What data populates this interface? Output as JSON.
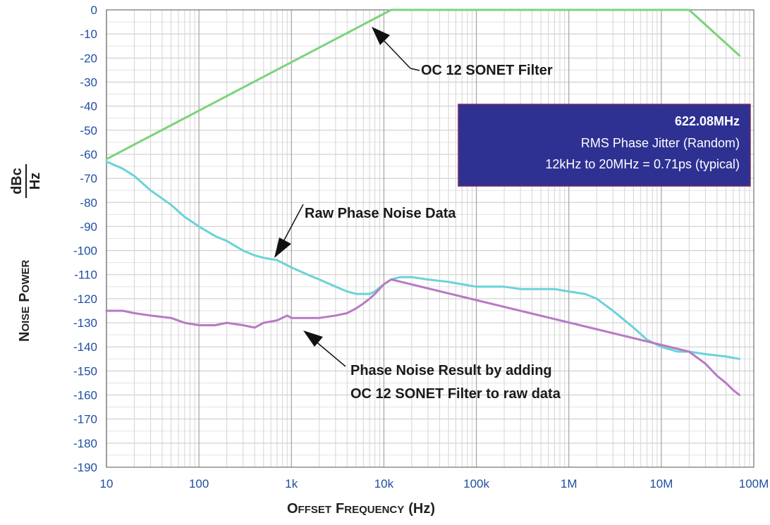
{
  "chart_data": {
    "type": "line",
    "x_scale": "log",
    "xlim": [
      10,
      100000000
    ],
    "ylim": [
      -190,
      0
    ],
    "grid": true,
    "xlabel": {
      "big_o": "O",
      "small_ffset": "FFSET",
      "big_f": "F",
      "small_requency": "REQUENCY",
      "unit": "(Hz)"
    },
    "ylabel": {
      "big_n": "N",
      "small_oise": "OISE",
      "big_p": "P",
      "small_ower": "OWER",
      "frac_num": "dBc",
      "frac_den": "Hz"
    },
    "x_ticks": [
      {
        "value": 10,
        "label": "10"
      },
      {
        "value": 100,
        "label": "100"
      },
      {
        "value": 1000,
        "label": "1k"
      },
      {
        "value": 10000,
        "label": "10k"
      },
      {
        "value": 100000,
        "label": "100k"
      },
      {
        "value": 1000000,
        "label": "1M"
      },
      {
        "value": 10000000,
        "label": "10M"
      },
      {
        "value": 100000000,
        "label": "100M"
      }
    ],
    "y_ticks": [
      {
        "value": 0,
        "label": "0"
      },
      {
        "value": -10,
        "label": "-10"
      },
      {
        "value": -20,
        "label": "-20"
      },
      {
        "value": -30,
        "label": "-30"
      },
      {
        "value": -40,
        "label": "-40"
      },
      {
        "value": -50,
        "label": "-50"
      },
      {
        "value": -60,
        "label": "-60"
      },
      {
        "value": -70,
        "label": "-70"
      },
      {
        "value": -80,
        "label": "-80"
      },
      {
        "value": -90,
        "label": "-90"
      },
      {
        "value": -100,
        "label": "-100"
      },
      {
        "value": -110,
        "label": "-110"
      },
      {
        "value": -120,
        "label": "-120"
      },
      {
        "value": -130,
        "label": "-130"
      },
      {
        "value": -140,
        "label": "-140"
      },
      {
        "value": -150,
        "label": "-150"
      },
      {
        "value": -160,
        "label": "-160"
      },
      {
        "value": -170,
        "label": "-170"
      },
      {
        "value": -180,
        "label": "-180"
      },
      {
        "value": -190,
        "label": "-190"
      }
    ],
    "series": [
      {
        "key": "filter",
        "color": "#7cd37c",
        "x": [
          10,
          12000,
          20000000,
          70000000
        ],
        "y": [
          -62,
          0,
          0,
          -19
        ]
      },
      {
        "key": "raw",
        "color": "#6ad3d8",
        "x": [
          10,
          15,
          20,
          30,
          50,
          70,
          100,
          150,
          200,
          300,
          400,
          500,
          700,
          1000,
          1500,
          2000,
          3000,
          4000,
          5000,
          6000,
          7000,
          8000,
          10000,
          12000,
          15000,
          20000,
          30000,
          50000,
          70000,
          100000,
          200000,
          300000,
          500000,
          700000,
          1000000,
          1500000,
          2000000,
          3000000,
          5000000,
          7000000,
          10000000,
          15000000,
          20000000,
          30000000,
          50000000,
          70000000
        ],
        "y": [
          -63,
          -66,
          -69,
          -75,
          -81,
          -86,
          -90,
          -94,
          -96,
          -100,
          -102,
          -103,
          -104,
          -107,
          -110,
          -112,
          -115,
          -117,
          -118,
          -118,
          -118,
          -117,
          -114,
          -112,
          -111,
          -111,
          -112,
          -113,
          -114,
          -115,
          -115,
          -116,
          -116,
          -116,
          -117,
          -118,
          -120,
          -125,
          -132,
          -137,
          -140,
          -142,
          -142,
          -143,
          -144,
          -145
        ]
      },
      {
        "key": "result",
        "color": "#b87ac4",
        "x": [
          10,
          15,
          20,
          30,
          50,
          70,
          100,
          150,
          200,
          300,
          400,
          500,
          700,
          900,
          1000,
          1200,
          1500,
          2000,
          3000,
          4000,
          5000,
          6000,
          7000,
          8000,
          10000,
          12000,
          20000000,
          30000000,
          40000000,
          50000000,
          60000000,
          70000000
        ],
        "y": [
          -125,
          -125,
          -126,
          -127,
          -128,
          -130,
          -131,
          -131,
          -130,
          -131,
          -132,
          -130,
          -129,
          -127,
          -128,
          -128,
          -128,
          -128,
          -127,
          -126,
          -124,
          -122,
          -120,
          -118,
          -114,
          -112,
          -142,
          -147,
          -152,
          -155,
          -158,
          -160
        ]
      }
    ],
    "annotations": {
      "filter": "OC 12 SONET Filter",
      "raw": "Raw Phase Noise Data",
      "result_line1": "Phase Noise Result by adding",
      "result_line2": "OC 12 SONET Filter to raw data"
    },
    "info_box": {
      "frequency": "622.08MHz",
      "line2": "RMS Phase Jitter  (Random)",
      "line3": "12kHz to 20MHz = 0.71ps (typical)",
      "fill": "#2e3192",
      "border": "#7a2a5a"
    }
  }
}
